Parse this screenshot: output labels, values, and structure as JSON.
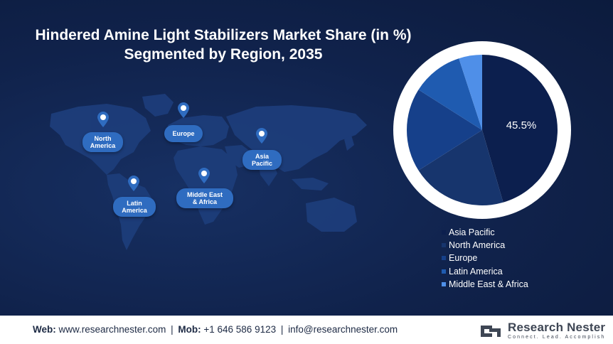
{
  "title_line1": "Hindered Amine Light Stabilizers Market Share (in %)",
  "title_line2": "Segmented by Region, 2035",
  "map_labels": {
    "north_america": [
      "North",
      "America"
    ],
    "europe": [
      "Europe"
    ],
    "asia_pacific": [
      "Asia",
      "Pacific"
    ],
    "latin_america": [
      "Latin",
      "America"
    ],
    "middle_east_africa": [
      "Middle East",
      "& Africa"
    ]
  },
  "chart_data": {
    "type": "pie",
    "title": "Hindered Amine Light Stabilizers Market Share (in %) Segmented by Region, 2035",
    "slices": [
      {
        "label": "Asia Pacific",
        "value": 45.5,
        "color": "#0c1f4e",
        "value_label": "45.5%"
      },
      {
        "label": "North America",
        "value": 20.5,
        "color": "#17356d",
        "value_label": ""
      },
      {
        "label": "Europe",
        "value": 18.0,
        "color": "#16408a",
        "value_label": ""
      },
      {
        "label": "Latin America",
        "value": 11.0,
        "color": "#1f5bb0",
        "value_label": ""
      },
      {
        "label": "Middle East & Africa",
        "value": 5.0,
        "color": "#4f8fe8",
        "value_label": ""
      }
    ],
    "legend_position": "bottom-right"
  },
  "footer": {
    "web_label": "Web:",
    "web_value": "www.researchnester.com",
    "mob_label": "Mob:",
    "mob_value": "+1 646 586 9123",
    "email": "info@researchnester.com",
    "brand_name": "Research Nester",
    "brand_tagline": "Connect. Lead. Accomplish"
  },
  "colors": {
    "background": "#10224b",
    "pin": "#2f6cc0",
    "footer_bg": "#ffffff"
  }
}
